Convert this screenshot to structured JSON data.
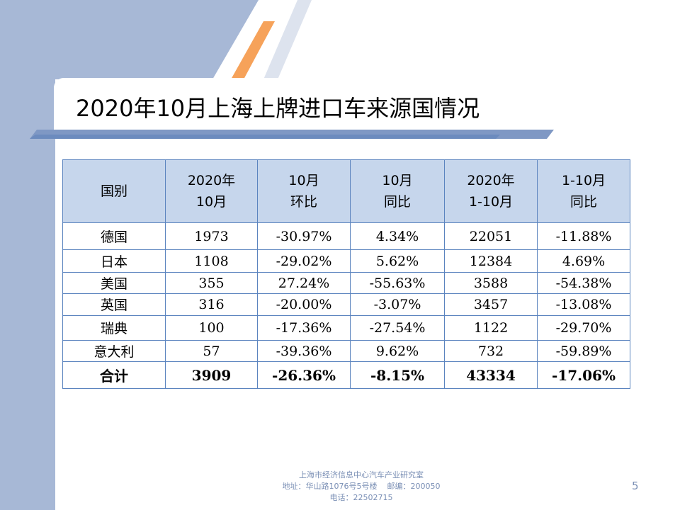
{
  "slide": {
    "title": "2020年10月上海上牌进口车来源国情况",
    "page_number": "5"
  },
  "table": {
    "headers": [
      [
        "国别"
      ],
      [
        "2020年",
        "10月"
      ],
      [
        "10月",
        "环比"
      ],
      [
        "10月",
        "同比"
      ],
      [
        "2020年",
        "1-10月"
      ],
      [
        "1-10月",
        "同比"
      ]
    ],
    "rows": [
      [
        "德国",
        "1973",
        "-30.97%",
        "4.34%",
        "22051",
        "-11.88%"
      ],
      [
        "日本",
        "1108",
        "-29.02%",
        "5.62%",
        "12384",
        "4.69%"
      ],
      [
        "美国",
        "355",
        "27.24%",
        "-55.63%",
        "3588",
        "-54.38%"
      ],
      [
        "英国",
        "316",
        "-20.00%",
        "-3.07%",
        "3457",
        "-13.08%"
      ],
      [
        "瑞典",
        "100",
        "-17.36%",
        "-27.54%",
        "1122",
        "-29.70%"
      ],
      [
        "意大利",
        "57",
        "-39.36%",
        "9.62%",
        "732",
        "-59.89%"
      ]
    ],
    "total": [
      "合计",
      "3909",
      "-26.36%",
      "-8.15%",
      "43334",
      "-17.06%"
    ]
  },
  "footer": {
    "line1": "上海市经济信息中心汽车产业研究室",
    "line2": "地址：华山路1076号5号楼    邮编：200050",
    "line3": "电话：22502715"
  },
  "colors": {
    "left_band": "#a7b8d6",
    "accent_orange": "#f4a460",
    "table_header": "#c6d6ec",
    "table_border": "#5b84bf"
  }
}
